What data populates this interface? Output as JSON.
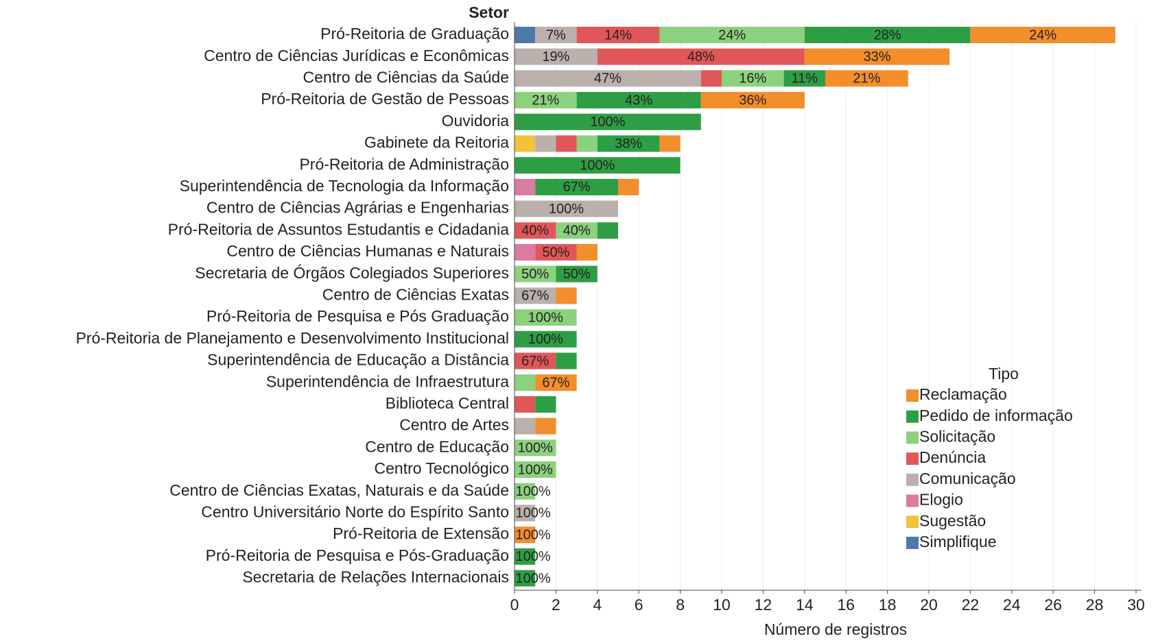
{
  "chart_data": {
    "type": "stacked-barh",
    "y_label": "Setor",
    "x_label": "Número de registros",
    "categories": [
      "Pró-Reitoria de Graduação",
      "Centro de Ciências Jurídicas e Econômicas",
      "Centro de Ciências da Saúde",
      "Pró-Reitoria de Gestão de Pessoas",
      "Ouvidoria",
      "Gabinete da Reitoria",
      "Pró-Reitoria de Administração",
      "Superintendência de Tecnologia da Informação",
      "Centro de Ciências Agrárias e Engenharias",
      "Pró-Reitoria de Assuntos Estudantis e Cidadania",
      "Centro de Ciências Humanas e Naturais",
      "Secretaria de Órgãos Colegiados Superiores",
      "Centro de Ciências Exatas",
      "Pró-Reitoria de Pesquisa e Pós Graduação",
      "Pró-Reitoria de Planejamento e Desenvolvimento Institucional",
      "Superintendência de Educação a Distância",
      "Superintendência de Infraestrutura",
      "Biblioteca Central",
      "Centro de Artes",
      "Centro de Educação",
      "Centro Tecnológico",
      "Centro de Ciências Exatas, Naturais e da Saúde",
      "Centro Universitário Norte do Espírito Santo",
      "Pró-Reitoria de Extensão",
      "Pró-Reitoria de Pesquisa e Pós-Graduação",
      "Secretaria de Relações Internacionais"
    ],
    "series": [
      {
        "name": "Simplifique",
        "color": "#4e79a7",
        "values": [
          1,
          null,
          null,
          null,
          null,
          null,
          null,
          null,
          null,
          null,
          null,
          null,
          null,
          null,
          null,
          null,
          null,
          null,
          null,
          null,
          null,
          null,
          null,
          null,
          null,
          null
        ]
      },
      {
        "name": "Sugestão",
        "color": "#f1c23a",
        "values": [
          null,
          null,
          null,
          null,
          null,
          1,
          null,
          null,
          null,
          null,
          null,
          null,
          null,
          null,
          null,
          null,
          null,
          null,
          null,
          null,
          null,
          null,
          null,
          null,
          null,
          null
        ]
      },
      {
        "name": "Elogio",
        "color": "#dc7aa0",
        "values": [
          null,
          null,
          null,
          null,
          null,
          null,
          null,
          1,
          null,
          null,
          1,
          null,
          null,
          null,
          null,
          null,
          null,
          null,
          null,
          null,
          null,
          null,
          null,
          null,
          null,
          null
        ]
      },
      {
        "name": "Comunicação",
        "color": "#bab0ac",
        "values": [
          2,
          4,
          9,
          null,
          null,
          1,
          null,
          null,
          5,
          null,
          null,
          null,
          2,
          null,
          null,
          null,
          null,
          null,
          1,
          null,
          null,
          null,
          1,
          null,
          null,
          null
        ],
        "labels": [
          "7%",
          "19%",
          "47%",
          null,
          null,
          null,
          null,
          null,
          "100%",
          null,
          null,
          null,
          "67%",
          null,
          null,
          null,
          null,
          null,
          null,
          null,
          null,
          null,
          "100%",
          null,
          null,
          null
        ]
      },
      {
        "name": "Denúncia",
        "color": "#e15759",
        "values": [
          4,
          10,
          1,
          null,
          null,
          1,
          null,
          null,
          null,
          2,
          2,
          null,
          null,
          null,
          null,
          2,
          null,
          1,
          null,
          null,
          null,
          null,
          null,
          null,
          null,
          null
        ],
        "labels": [
          "14%",
          "48%",
          null,
          null,
          null,
          null,
          null,
          null,
          null,
          "40%",
          "50%",
          null,
          null,
          null,
          null,
          "67%",
          null,
          null,
          null,
          null,
          null,
          null,
          null,
          null,
          null,
          null
        ]
      },
      {
        "name": "Solicitação",
        "color": "#8cd17d",
        "values": [
          7,
          null,
          3,
          3,
          null,
          1,
          null,
          null,
          null,
          2,
          null,
          2,
          null,
          3,
          null,
          null,
          1,
          null,
          null,
          2,
          2,
          1,
          null,
          null,
          null,
          null
        ],
        "labels": [
          "24%",
          null,
          "16%",
          "21%",
          null,
          null,
          null,
          null,
          null,
          "40%",
          null,
          "50%",
          null,
          "100%",
          null,
          null,
          null,
          null,
          null,
          "100%",
          "100%",
          "100%",
          null,
          null,
          null,
          null
        ]
      },
      {
        "name": "Pedido de informação",
        "color": "#2e9e44",
        "values": [
          8,
          null,
          2,
          6,
          9,
          3,
          8,
          4,
          null,
          1,
          null,
          2,
          null,
          null,
          3,
          1,
          null,
          1,
          null,
          null,
          null,
          null,
          null,
          null,
          1,
          1
        ],
        "labels": [
          "28%",
          null,
          "11%",
          "43%",
          "100%",
          "38%",
          "100%",
          "67%",
          null,
          null,
          null,
          "50%",
          null,
          null,
          "100%",
          null,
          null,
          null,
          null,
          null,
          null,
          null,
          null,
          null,
          "100%",
          "100%"
        ]
      },
      {
        "name": "Reclamação",
        "color": "#f28e2b",
        "values": [
          7,
          7,
          4,
          5,
          null,
          1,
          null,
          1,
          null,
          null,
          1,
          null,
          1,
          null,
          null,
          null,
          2,
          null,
          1,
          null,
          null,
          null,
          null,
          1,
          null,
          null
        ],
        "labels": [
          "24%",
          "33%",
          "21%",
          "36%",
          null,
          null,
          null,
          null,
          null,
          null,
          null,
          null,
          null,
          null,
          null,
          null,
          "67%",
          null,
          null,
          null,
          null,
          null,
          null,
          "100%",
          null,
          null
        ]
      }
    ],
    "xlim": [
      0,
      30
    ],
    "xticks": [
      0,
      2,
      4,
      6,
      8,
      10,
      12,
      14,
      16,
      18,
      20,
      22,
      24,
      26,
      28,
      30
    ],
    "grid": true,
    "legend": {
      "title": "Tipo",
      "position": "lower right"
    }
  }
}
